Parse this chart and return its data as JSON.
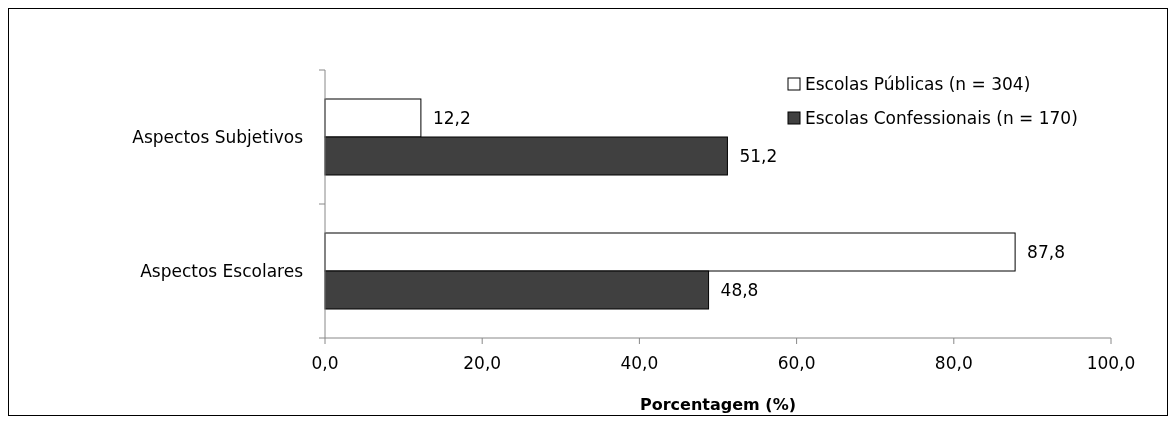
{
  "chart_data": {
    "type": "bar",
    "orientation": "horizontal",
    "categories": [
      "Aspectos Subjetivos",
      "Aspectos Escolares"
    ],
    "series": [
      {
        "name": "Escolas Públicas (n = 304)",
        "color": "#ffffff",
        "values": [
          12.2,
          87.8
        ],
        "value_labels": [
          "12,2",
          "87,8"
        ]
      },
      {
        "name": "Escolas Confessionais (n = 170)",
        "color": "#404040",
        "values": [
          51.2,
          48.8
        ],
        "value_labels": [
          "51,2",
          "48,8"
        ]
      }
    ],
    "xlabel": "Porcentagem (%)",
    "xlim": [
      0,
      100
    ],
    "xticks": [
      {
        "value": 0,
        "label": "0,0"
      },
      {
        "value": 20,
        "label": "20,0"
      },
      {
        "value": 40,
        "label": "40,0"
      },
      {
        "value": 60,
        "label": "60,0"
      },
      {
        "value": 80,
        "label": "80,0"
      },
      {
        "value": 100,
        "label": "100,0"
      }
    ],
    "grid": false,
    "legend": "top right"
  }
}
